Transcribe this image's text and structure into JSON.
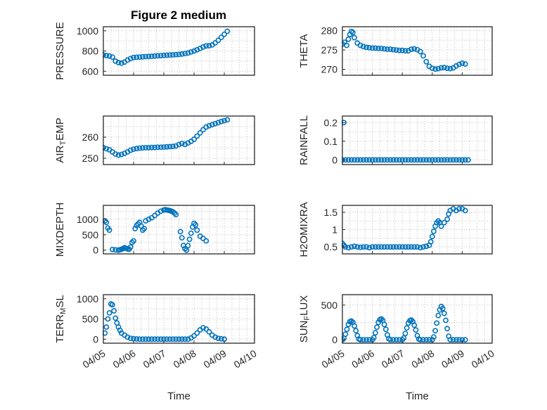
{
  "figure": {
    "title": "Figure 2 medium",
    "xlabel": "Time",
    "marker_color": "#0072BD",
    "grid_color": "#b9b9b9",
    "axis_color": "#262626",
    "background": "#ffffff"
  },
  "xaxis": {
    "range": [
      0,
      5
    ],
    "ticks": [
      0,
      1,
      2,
      3,
      4,
      5
    ],
    "labels": [
      "04/05",
      "04/06",
      "04/07",
      "04/08",
      "04/09",
      "04/10"
    ]
  },
  "chart_data": [
    {
      "type": "scatter",
      "name": "pressure",
      "row": 0,
      "col": 0,
      "ylabel_parts": [
        {
          "text": "PRESSURE",
          "sub": false
        }
      ],
      "ylim": [
        560,
        1040
      ],
      "yticks": [
        600,
        800,
        1000
      ],
      "ytick_labels": [
        "600",
        "800",
        "1000"
      ],
      "x": [
        0,
        0.1,
        0.2,
        0.3,
        0.4,
        0.5,
        0.6,
        0.7,
        0.8,
        0.9,
        1,
        1.1,
        1.2,
        1.3,
        1.4,
        1.5,
        1.6,
        1.7,
        1.8,
        1.9,
        2,
        2.1,
        2.2,
        2.3,
        2.4,
        2.5,
        2.6,
        2.7,
        2.8,
        2.9,
        3,
        3.1,
        3.2,
        3.3,
        3.4,
        3.5,
        3.6,
        3.7,
        3.8,
        3.9,
        4,
        4.1
      ],
      "y": [
        760,
        755,
        750,
        740,
        700,
        685,
        680,
        690,
        710,
        725,
        735,
        738,
        740,
        742,
        744,
        746,
        748,
        750,
        752,
        754,
        756,
        758,
        760,
        762,
        764,
        766,
        770,
        775,
        780,
        790,
        800,
        812,
        825,
        840,
        850,
        852,
        860,
        880,
        905,
        935,
        965,
        995
      ]
    },
    {
      "type": "scatter",
      "name": "theta",
      "row": 0,
      "col": 1,
      "ylabel_parts": [
        {
          "text": "THETA",
          "sub": false
        }
      ],
      "ylim": [
        268.5,
        281
      ],
      "yticks": [
        270,
        275,
        280
      ],
      "ytick_labels": [
        "270",
        "275",
        "280"
      ],
      "x": [
        0,
        0.07,
        0.14,
        0.2,
        0.25,
        0.3,
        0.35,
        0.4,
        0.5,
        0.6,
        0.7,
        0.8,
        0.9,
        1,
        1.1,
        1.2,
        1.3,
        1.4,
        1.5,
        1.6,
        1.7,
        1.8,
        1.9,
        2,
        2.1,
        2.2,
        2.3,
        2.4,
        2.5,
        2.6,
        2.7,
        2.8,
        2.9,
        3,
        3.1,
        3.2,
        3.3,
        3.4,
        3.5,
        3.6,
        3.7,
        3.8,
        3.9,
        4,
        4.1
      ],
      "y": [
        276.5,
        277,
        276.2,
        277.8,
        279,
        279.8,
        279.5,
        278.2,
        276.8,
        276.2,
        275.9,
        275.7,
        275.6,
        275.5,
        275.5,
        275.4,
        275.4,
        275.3,
        275.2,
        275.2,
        275.1,
        275.0,
        274.9,
        274.9,
        274.8,
        274.8,
        275.2,
        275.3,
        275.1,
        274.6,
        273.5,
        272.0,
        270.8,
        270.3,
        270.1,
        270.2,
        270.4,
        270.5,
        270.3,
        270.2,
        270.4,
        270.9,
        271.3,
        271.6,
        271.4
      ]
    },
    {
      "type": "scatter",
      "name": "air_temp",
      "row": 1,
      "col": 0,
      "ylabel_parts": [
        {
          "text": "AIR",
          "sub": false
        },
        {
          "text": "T",
          "sub": true
        },
        {
          "text": "EMP",
          "sub": false
        }
      ],
      "ylim": [
        247,
        270
      ],
      "yticks": [
        250,
        260
      ],
      "ytick_labels": [
        "250",
        "260"
      ],
      "x": [
        0,
        0.1,
        0.2,
        0.3,
        0.4,
        0.5,
        0.6,
        0.7,
        0.8,
        0.9,
        1,
        1.1,
        1.2,
        1.3,
        1.4,
        1.5,
        1.6,
        1.7,
        1.8,
        1.9,
        2,
        2.1,
        2.2,
        2.3,
        2.4,
        2.5,
        2.6,
        2.7,
        2.8,
        2.9,
        3,
        3.1,
        3.2,
        3.3,
        3.4,
        3.5,
        3.6,
        3.7,
        3.8,
        3.9,
        4,
        4.1
      ],
      "y": [
        255,
        254.5,
        254,
        253,
        252,
        251.5,
        251.8,
        252.3,
        253,
        253.8,
        254.3,
        254.6,
        254.8,
        254.9,
        255,
        255,
        255.1,
        255.1,
        255.2,
        255.2,
        255.3,
        255.4,
        255.5,
        255.6,
        255.8,
        256.5,
        257,
        256.6,
        257.2,
        258,
        259,
        260.5,
        262,
        263.5,
        264.8,
        265.4,
        265.9,
        266.4,
        266.9,
        267.4,
        267.8,
        268.2
      ]
    },
    {
      "type": "scatter",
      "name": "rainfall",
      "row": 1,
      "col": 1,
      "ylabel_parts": [
        {
          "text": "RAINFALL",
          "sub": false
        }
      ],
      "ylim": [
        -0.025,
        0.235
      ],
      "yticks": [
        0,
        0.1,
        0.2
      ],
      "ytick_labels": [
        "0",
        "0.1",
        "0.2"
      ],
      "x": [
        0.05,
        0,
        0.1,
        0.2,
        0.3,
        0.4,
        0.5,
        0.6,
        0.7,
        0.8,
        0.9,
        1,
        1.1,
        1.2,
        1.3,
        1.4,
        1.5,
        1.6,
        1.7,
        1.8,
        1.9,
        2,
        2.1,
        2.2,
        2.3,
        2.4,
        2.5,
        2.6,
        2.7,
        2.8,
        2.9,
        3,
        3.1,
        3.2,
        3.3,
        3.4,
        3.5,
        3.6,
        3.7,
        3.8,
        3.9,
        4,
        4.1,
        4.2
      ],
      "y": [
        0.2,
        0,
        0,
        0,
        0,
        0,
        0,
        0,
        0,
        0,
        0,
        0,
        0,
        0,
        0,
        0,
        0,
        0,
        0,
        0,
        0,
        0,
        0,
        0,
        0,
        0,
        0,
        0,
        0,
        0,
        0,
        0,
        0,
        0,
        0,
        0,
        0,
        0,
        0,
        0,
        0,
        0,
        0,
        0
      ]
    },
    {
      "type": "scatter",
      "name": "mixdepth",
      "row": 2,
      "col": 0,
      "ylabel_parts": [
        {
          "text": "MIXDEPTH",
          "sub": false
        }
      ],
      "ylim": [
        -120,
        1450
      ],
      "yticks": [
        0,
        500,
        1000
      ],
      "ytick_labels": [
        "0",
        "500",
        "1000"
      ],
      "x": [
        0.05,
        0.1,
        0.15,
        0.2,
        0.3,
        0.4,
        0.5,
        0.55,
        0.6,
        0.65,
        0.7,
        0.75,
        0.8,
        0.85,
        0.9,
        0.95,
        1,
        1.05,
        1.1,
        1.15,
        1.2,
        1.25,
        1.3,
        1.35,
        1.4,
        1.5,
        1.6,
        1.7,
        1.8,
        1.9,
        2,
        2.05,
        2.1,
        2.15,
        2.2,
        2.25,
        2.3,
        2.35,
        2.4,
        2.55,
        2.6,
        2.65,
        2.7,
        2.75,
        2.8,
        2.85,
        2.9,
        2.95,
        3,
        3.05,
        3.1,
        3.2,
        3.3,
        3.4
      ],
      "y": [
        950,
        900,
        720,
        650,
        20,
        10,
        0,
        15,
        30,
        50,
        80,
        60,
        40,
        30,
        100,
        250,
        300,
        700,
        800,
        850,
        900,
        780,
        650,
        700,
        950,
        1000,
        1050,
        1120,
        1200,
        1260,
        1300,
        1310,
        1300,
        1290,
        1280,
        1260,
        1240,
        1200,
        1150,
        600,
        400,
        150,
        50,
        0,
        150,
        350,
        550,
        750,
        870,
        820,
        650,
        450,
        380,
        300
      ]
    },
    {
      "type": "scatter",
      "name": "h2omixra",
      "row": 2,
      "col": 1,
      "ylabel_parts": [
        {
          "text": "H2OMIXRA",
          "sub": false
        }
      ],
      "ylim": [
        0.3,
        1.7
      ],
      "yticks": [
        0.5,
        1,
        1.5
      ],
      "ytick_labels": [
        "0.5",
        "1",
        "1.5"
      ],
      "x": [
        0,
        0.05,
        0.1,
        0.2,
        0.3,
        0.4,
        0.5,
        0.6,
        0.7,
        0.8,
        0.9,
        1,
        1.1,
        1.2,
        1.3,
        1.4,
        1.5,
        1.6,
        1.7,
        1.8,
        1.9,
        2,
        2.1,
        2.2,
        2.3,
        2.4,
        2.5,
        2.6,
        2.7,
        2.8,
        2.9,
        2.95,
        3,
        3.05,
        3.1,
        3.15,
        3.2,
        3.25,
        3.3,
        3.4,
        3.5,
        3.55,
        3.6,
        3.7,
        3.8,
        3.9,
        4,
        4.1
      ],
      "y": [
        0.6,
        0.55,
        0.5,
        0.48,
        0.5,
        0.52,
        0.5,
        0.49,
        0.5,
        0.5,
        0.48,
        0.5,
        0.5,
        0.5,
        0.5,
        0.5,
        0.5,
        0.5,
        0.5,
        0.5,
        0.5,
        0.5,
        0.5,
        0.5,
        0.5,
        0.5,
        0.5,
        0.48,
        0.5,
        0.52,
        0.55,
        0.65,
        0.8,
        0.95,
        1.1,
        1.2,
        1.25,
        1.2,
        1.1,
        1.2,
        1.3,
        1.45,
        1.55,
        1.6,
        1.55,
        1.6,
        1.6,
        1.55
      ]
    },
    {
      "type": "scatter",
      "name": "terr_msl",
      "row": 3,
      "col": 0,
      "ylabel_parts": [
        {
          "text": "TERR",
          "sub": false
        },
        {
          "text": "M",
          "sub": true
        },
        {
          "text": "SL",
          "sub": false
        }
      ],
      "ylim": [
        -100,
        1100
      ],
      "yticks": [
        0,
        500,
        1000
      ],
      "ytick_labels": [
        "0",
        "500",
        "1000"
      ],
      "x": [
        0.05,
        0.1,
        0.15,
        0.2,
        0.25,
        0.3,
        0.35,
        0.4,
        0.45,
        0.5,
        0.55,
        0.6,
        0.7,
        0.8,
        0.9,
        1,
        1.1,
        1.2,
        1.3,
        1.4,
        1.5,
        1.6,
        1.7,
        1.8,
        1.9,
        2,
        2.1,
        2.2,
        2.3,
        2.4,
        2.5,
        2.6,
        2.7,
        2.8,
        2.9,
        3,
        3.1,
        3.2,
        3.3,
        3.4,
        3.5,
        3.6,
        3.7,
        3.8,
        3.9,
        4
      ],
      "y": [
        150,
        300,
        500,
        650,
        870,
        850,
        700,
        520,
        400,
        300,
        220,
        150,
        100,
        50,
        20,
        10,
        5,
        0,
        0,
        0,
        0,
        0,
        0,
        0,
        0,
        0,
        0,
        0,
        0,
        0,
        0,
        0,
        0,
        0,
        30,
        80,
        150,
        230,
        280,
        250,
        180,
        100,
        50,
        20,
        10,
        0
      ]
    },
    {
      "type": "scatter",
      "name": "sun_flux",
      "row": 3,
      "col": 1,
      "ylabel_parts": [
        {
          "text": "SUN",
          "sub": false
        },
        {
          "text": "F",
          "sub": true
        },
        {
          "text": "LUX",
          "sub": false
        }
      ],
      "ylim": [
        -50,
        650
      ],
      "yticks": [
        0,
        500
      ],
      "ytick_labels": [
        "0",
        "500"
      ],
      "x": [
        0,
        0.05,
        0.1,
        0.15,
        0.2,
        0.25,
        0.3,
        0.35,
        0.4,
        0.45,
        0.5,
        0.55,
        0.6,
        0.7,
        0.8,
        0.9,
        1,
        1.05,
        1.1,
        1.15,
        1.2,
        1.25,
        1.3,
        1.35,
        1.4,
        1.45,
        1.5,
        1.55,
        1.6,
        1.7,
        1.8,
        1.9,
        2,
        2.05,
        2.1,
        2.15,
        2.2,
        2.25,
        2.3,
        2.35,
        2.4,
        2.45,
        2.5,
        2.55,
        2.6,
        2.7,
        2.8,
        2.9,
        3,
        3.05,
        3.1,
        3.15,
        3.2,
        3.25,
        3.3,
        3.35,
        3.4,
        3.45,
        3.5,
        3.55,
        3.6,
        3.7,
        3.8,
        3.9,
        4,
        4.1
      ],
      "y": [
        0,
        20,
        80,
        150,
        220,
        260,
        270,
        250,
        200,
        130,
        60,
        10,
        0,
        0,
        0,
        0,
        0,
        30,
        100,
        180,
        250,
        290,
        300,
        280,
        220,
        150,
        70,
        15,
        0,
        0,
        0,
        0,
        0,
        25,
        90,
        170,
        240,
        275,
        285,
        260,
        210,
        140,
        60,
        10,
        0,
        0,
        0,
        0,
        0,
        40,
        130,
        240,
        350,
        430,
        480,
        450,
        380,
        280,
        160,
        50,
        0,
        0,
        0,
        0,
        0,
        0
      ]
    }
  ]
}
